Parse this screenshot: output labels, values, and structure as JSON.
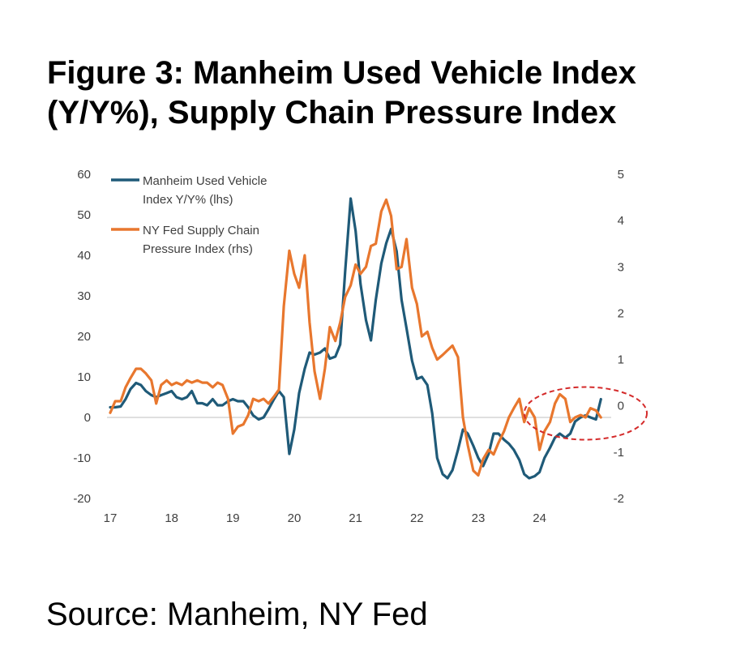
{
  "header": {
    "title_line1": "Figure 3: Manheim Used Vehicle Index",
    "title_line2": "(Y/Y%), Supply Chain Pressure Index"
  },
  "footer": {
    "source": "Source: Manheim, NY Fed"
  },
  "chart_data": {
    "type": "line",
    "title": "",
    "xlabel": "",
    "ylabel_left": "",
    "ylabel_right": "",
    "x_ticks": [
      "17",
      "18",
      "19",
      "20",
      "21",
      "22",
      "23",
      "24"
    ],
    "x_tick_years": [
      2017,
      2018,
      2019,
      2020,
      2021,
      2022,
      2023,
      2024
    ],
    "xlim": [
      2017.0,
      2025.3
    ],
    "ylim_left": [
      -20,
      60
    ],
    "ylim_right": [
      -2,
      5
    ],
    "y_ticks_left": [
      "60",
      "50",
      "40",
      "30",
      "20",
      "10",
      "0",
      "-10",
      "-20"
    ],
    "y_ticks_left_values": [
      60,
      50,
      40,
      30,
      20,
      10,
      0,
      -10,
      -20
    ],
    "y_ticks_right": [
      "5",
      "4",
      "3",
      "2",
      "1",
      "0",
      "-1",
      "-2"
    ],
    "y_ticks_right_values": [
      5,
      4,
      3,
      2,
      1,
      0,
      -1,
      -2
    ],
    "grid": false,
    "zero_line": true,
    "legend_position": "top-left",
    "series": [
      {
        "name": "Manheim Used Vehicle Index Y/Y% (lhs)",
        "legend_lines": [
          "Manheim Used Vehicle",
          "Index Y/Y% (lhs)"
        ],
        "axis": "left",
        "color": "#1f5a78",
        "x": [
          2017.0,
          2017.08,
          2017.17,
          2017.25,
          2017.33,
          2017.42,
          2017.5,
          2017.58,
          2017.67,
          2017.75,
          2017.83,
          2017.92,
          2018.0,
          2018.08,
          2018.17,
          2018.25,
          2018.33,
          2018.42,
          2018.5,
          2018.58,
          2018.67,
          2018.75,
          2018.83,
          2018.92,
          2019.0,
          2019.08,
          2019.17,
          2019.25,
          2019.33,
          2019.42,
          2019.5,
          2019.58,
          2019.67,
          2019.75,
          2019.83,
          2019.92,
          2020.0,
          2020.08,
          2020.17,
          2020.25,
          2020.33,
          2020.42,
          2020.5,
          2020.58,
          2020.67,
          2020.75,
          2020.83,
          2020.92,
          2021.0,
          2021.08,
          2021.17,
          2021.25,
          2021.33,
          2021.42,
          2021.5,
          2021.58,
          2021.67,
          2021.75,
          2021.83,
          2021.92,
          2022.0,
          2022.08,
          2022.17,
          2022.25,
          2022.33,
          2022.42,
          2022.5,
          2022.58,
          2022.67,
          2022.75,
          2022.83,
          2022.92,
          2023.0,
          2023.08,
          2023.17,
          2023.25,
          2023.33,
          2023.42,
          2023.5,
          2023.58,
          2023.67,
          2023.75,
          2023.83,
          2023.92,
          2024.0,
          2024.08,
          2024.17,
          2024.25,
          2024.33,
          2024.42,
          2024.5,
          2024.58,
          2024.67,
          2024.75,
          2024.83,
          2024.92,
          2025.0
        ],
        "values": [
          2.5,
          2.5,
          2.7,
          4.5,
          7.0,
          8.5,
          8.0,
          6.5,
          5.5,
          5.0,
          5.5,
          6.0,
          6.5,
          5.0,
          4.5,
          5.0,
          6.5,
          3.5,
          3.5,
          3.0,
          4.5,
          3.0,
          3.0,
          4.0,
          4.5,
          4.0,
          4.0,
          2.5,
          0.5,
          -0.5,
          0.0,
          2.0,
          4.5,
          6.5,
          5.0,
          -9.0,
          -3.0,
          6.0,
          12.0,
          16.0,
          15.5,
          16.0,
          17.0,
          14.5,
          15.0,
          18.0,
          36.0,
          54.0,
          46.0,
          33.0,
          24.0,
          19.0,
          29.0,
          38.0,
          43.0,
          46.5,
          41.0,
          29.0,
          22.0,
          14.0,
          9.5,
          10.0,
          8.0,
          1.0,
          -10.0,
          -14.0,
          -15.0,
          -13.0,
          -8.0,
          -3.0,
          -4.0,
          -7.0,
          -10.0,
          -12.0,
          -9.0,
          -4.0,
          -4.0,
          -5.5,
          -6.5,
          -8.0,
          -10.5,
          -14.0,
          -15.0,
          -14.5,
          -13.5,
          -10.0,
          -7.5,
          -5.0,
          -4.0,
          -5.0,
          -4.0,
          -1.0,
          0.0,
          0.5,
          0.0,
          -0.5,
          4.5
        ]
      },
      {
        "name": "NY Fed Supply Chain Pressure Index (rhs)",
        "legend_lines": [
          "NY Fed Supply Chain",
          "Pressure Index (rhs)"
        ],
        "axis": "right",
        "color": "#e8772e",
        "x": [
          2017.0,
          2017.08,
          2017.17,
          2017.25,
          2017.33,
          2017.42,
          2017.5,
          2017.58,
          2017.67,
          2017.75,
          2017.83,
          2017.92,
          2018.0,
          2018.08,
          2018.17,
          2018.25,
          2018.33,
          2018.42,
          2018.5,
          2018.58,
          2018.67,
          2018.75,
          2018.83,
          2018.92,
          2019.0,
          2019.08,
          2019.17,
          2019.25,
          2019.33,
          2019.42,
          2019.5,
          2019.58,
          2019.67,
          2019.75,
          2019.83,
          2019.92,
          2020.0,
          2020.08,
          2020.17,
          2020.25,
          2020.33,
          2020.42,
          2020.5,
          2020.58,
          2020.67,
          2020.75,
          2020.83,
          2020.92,
          2021.0,
          2021.08,
          2021.17,
          2021.25,
          2021.33,
          2021.42,
          2021.5,
          2021.58,
          2021.67,
          2021.75,
          2021.83,
          2021.92,
          2022.0,
          2022.08,
          2022.17,
          2022.25,
          2022.33,
          2022.42,
          2022.5,
          2022.58,
          2022.67,
          2022.75,
          2022.83,
          2022.92,
          2023.0,
          2023.08,
          2023.17,
          2023.25,
          2023.33,
          2023.42,
          2023.5,
          2023.58,
          2023.67,
          2023.75,
          2023.83,
          2023.92,
          2024.0,
          2024.08,
          2024.17,
          2024.25,
          2024.33,
          2024.42,
          2024.5,
          2024.58,
          2024.67,
          2024.75,
          2024.83,
          2024.92,
          2025.0
        ],
        "values": [
          -0.15,
          0.1,
          0.1,
          0.4,
          0.6,
          0.8,
          0.8,
          0.7,
          0.55,
          0.05,
          0.45,
          0.55,
          0.45,
          0.5,
          0.45,
          0.55,
          0.5,
          0.55,
          0.5,
          0.5,
          0.4,
          0.5,
          0.45,
          0.15,
          -0.6,
          -0.45,
          -0.4,
          -0.2,
          0.15,
          0.1,
          0.15,
          0.05,
          0.2,
          0.35,
          2.15,
          3.35,
          2.85,
          2.55,
          3.25,
          1.8,
          0.75,
          0.15,
          0.8,
          1.7,
          1.4,
          1.8,
          2.35,
          2.6,
          3.05,
          2.85,
          3.0,
          3.45,
          3.5,
          4.2,
          4.45,
          4.1,
          2.95,
          3.0,
          3.6,
          2.55,
          2.2,
          1.5,
          1.6,
          1.25,
          1.0,
          1.1,
          1.2,
          1.3,
          1.05,
          -0.25,
          -0.85,
          -1.4,
          -1.5,
          -1.15,
          -0.95,
          -1.05,
          -0.8,
          -0.55,
          -0.25,
          -0.05,
          0.15,
          -0.35,
          -0.05,
          -0.25,
          -0.95,
          -0.55,
          -0.35,
          0.05,
          0.25,
          0.15,
          -0.35,
          -0.25,
          -0.2,
          -0.25,
          -0.05,
          -0.1,
          -0.25
        ]
      }
    ],
    "annotations": [
      {
        "type": "dashed-ellipse",
        "color": "#d42a2a",
        "x_range": [
          2023.75,
          2025.75
        ],
        "y_range_left": [
          -5.5,
          7.5
        ]
      }
    ]
  }
}
